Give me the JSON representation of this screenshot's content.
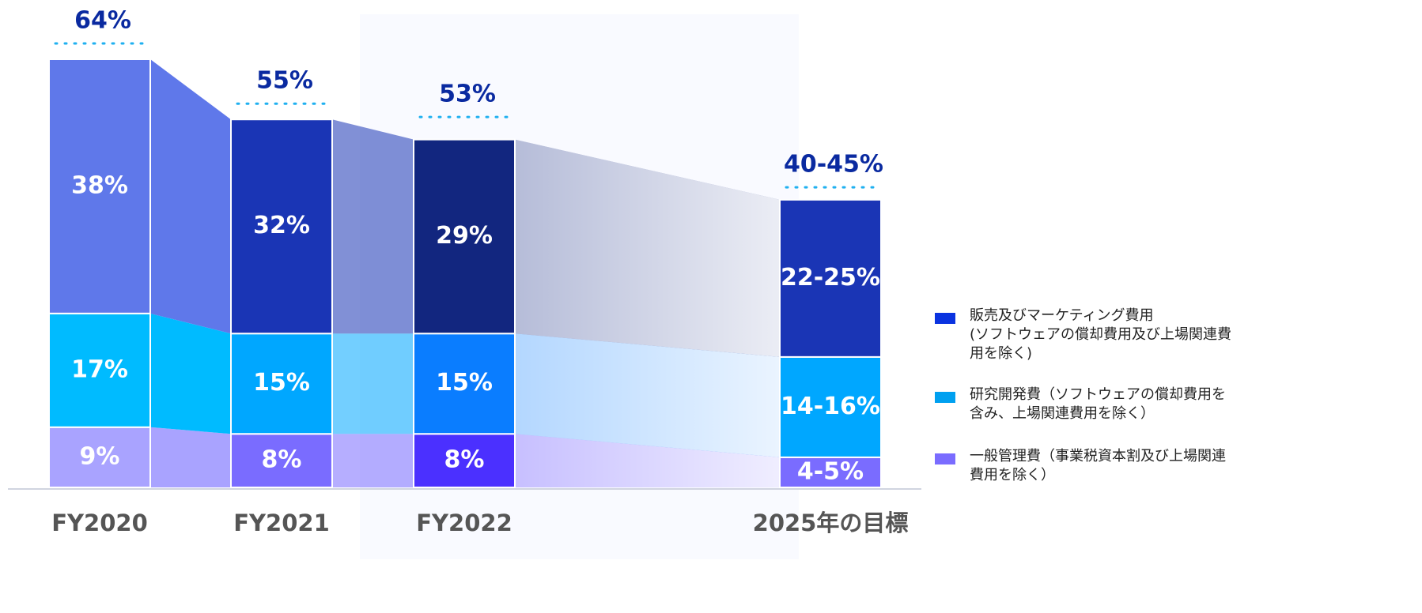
{
  "chart_data": {
    "type": "bar",
    "stacked": true,
    "categories": [
      "FY2020",
      "FY2021",
      "FY2022",
      "2025年の目標"
    ],
    "totals": [
      64,
      55,
      53,
      [
        40,
        45
      ]
    ],
    "total_labels": [
      "64%",
      "55%",
      "53%",
      "40-45%"
    ],
    "series": [
      {
        "name": "一般管理費（事業税資本割及び上場関連費用を除く）",
        "color": "#7a6cff",
        "colors": [
          "#a9a3ff",
          "#7a6cff",
          "#4b30ff",
          "#7a6cff"
        ],
        "values": [
          9,
          8,
          8,
          [
            4,
            5
          ]
        ],
        "value_labels": [
          "9%",
          "8%",
          "8%",
          "4-5%"
        ]
      },
      {
        "name": "研究開発費（ソフトウェアの償却費用を含み、上場関連費用を除く）",
        "color": "#00a0f0",
        "colors": [
          "#00bbff",
          "#00a7ff",
          "#0a7dff",
          "#00a7ff"
        ],
        "values": [
          17,
          15,
          15,
          [
            14,
            16
          ]
        ],
        "value_labels": [
          "17%",
          "15%",
          "15%",
          "14-16%"
        ]
      },
      {
        "name": "販売及びマーケティング費用\n(ソフトウェアの償却費用及び上場関連費用を除く)",
        "color": "#0a33e0",
        "colors": [
          "#5f78ea",
          "#1a35b5",
          "#12267f",
          "#1a35b5"
        ],
        "values": [
          38,
          32,
          29,
          [
            22,
            25
          ]
        ],
        "value_labels": [
          "38%",
          "32%",
          "29%",
          "22-25%"
        ]
      }
    ]
  }
}
